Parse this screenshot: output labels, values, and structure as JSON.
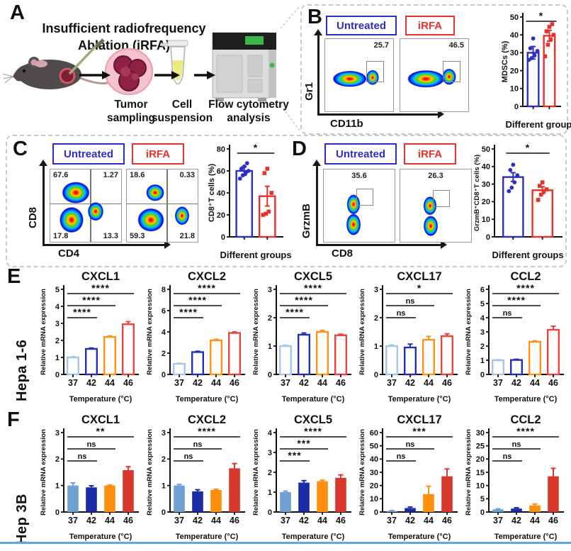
{
  "panelA": {
    "label": "A",
    "title_line1": "Insufficient radiofrequency",
    "title_line2": "Ablation (iRFA)",
    "steps": [
      {
        "line1": "Tumor",
        "line2": "sampling"
      },
      {
        "line1": "Cell",
        "line2": "suspension"
      },
      {
        "line1": "Flow cytometry",
        "line2": "analysis"
      }
    ]
  },
  "groups": {
    "untreated": "Untreated",
    "irfa": "iRFA"
  },
  "panelB": {
    "label": "B",
    "gate_untreated": "25.7",
    "gate_irfa": "46.5",
    "yaxis": "Gr1",
    "xaxis": "CD11b"
  },
  "panelC": {
    "label": "C",
    "yaxis": "CD8",
    "xaxis": "CD4",
    "untreated": {
      "tl": "67.6",
      "tr": "1.27",
      "bl": "17.8",
      "br": "13.3"
    },
    "irfa": {
      "tl": "18.6",
      "tr": "0.33",
      "bl": "59.3",
      "br": "21.8"
    }
  },
  "panelD": {
    "label": "D",
    "gate_untreated": "35.6",
    "gate_irfa": "26.3",
    "yaxis": "GrzmB",
    "xaxis": "CD8"
  },
  "panelE": {
    "label": "E",
    "row_label": "Hepa 1-6"
  },
  "panelF": {
    "label": "F",
    "row_label": "Hep 3B"
  },
  "colors": {
    "untreated_blue": "#2B2FC4",
    "irfa_red": "#E8312A",
    "temp37_hollow": "#A5C6E8",
    "temp42_hollow": "#2230B8",
    "temp44_hollow": "#FF9318",
    "temp46_hollow": "#E8453C",
    "temp37_solid": "#6FA0D2",
    "temp42_solid": "#1B2AA6",
    "temp44_solid": "#FF8E0D",
    "temp46_solid": "#DA372C",
    "bottom_rule": "#59ACDF"
  },
  "chart_data": [
    {
      "id": "B-mdsc",
      "type": "bar",
      "title": "",
      "ylabel": "MDSCs (%)",
      "xlabel": "Different groups",
      "ymax": 50,
      "ystep": 10,
      "categories": [
        "Untreated",
        "iRFA"
      ],
      "show_xticklabels": false,
      "style": "hollow",
      "colors": [
        "#2B2FC4",
        "#E8312A"
      ],
      "values": [
        30,
        39.5
      ],
      "errors": [
        3.5,
        3
      ],
      "points": [
        [
          26,
          27,
          28.5,
          31,
          32.5,
          38
        ],
        [
          28,
          34.5,
          37.5,
          40,
          42,
          44.5,
          46
        ]
      ],
      "point_shapes": [
        "circle",
        "square"
      ],
      "sigs": [
        {
          "a": 0,
          "b": 1,
          "label": "*"
        }
      ]
    },
    {
      "id": "C-cd8t",
      "type": "bar",
      "title": "",
      "ylabel": "CD8⁺T cells (%)",
      "xlabel": "Different groups",
      "ymax": 80,
      "ystep": 20,
      "categories": [
        "Untreated",
        "iRFA"
      ],
      "show_xticklabels": false,
      "style": "hollow",
      "colors": [
        "#2B2FC4",
        "#E8312A"
      ],
      "values": [
        60,
        37
      ],
      "errors": [
        4,
        9
      ],
      "points": [
        [
          53,
          56,
          58,
          60,
          62,
          64,
          67
        ],
        [
          20,
          21,
          23,
          40,
          58,
          62
        ]
      ],
      "point_shapes": [
        "circle",
        "square"
      ],
      "sigs": [
        {
          "a": 0,
          "b": 1,
          "label": "*"
        }
      ]
    },
    {
      "id": "D-grzmb",
      "type": "bar",
      "title": "",
      "ylabel": "GrzmB⁺CD8⁺T cells (%)",
      "xlabel": "Different groups",
      "ymax": 50,
      "ystep": 10,
      "categories": [
        "Untreated",
        "iRFA"
      ],
      "show_xticklabels": false,
      "style": "hollow",
      "colors": [
        "#2B2FC4",
        "#E8312A"
      ],
      "values": [
        34,
        26.5
      ],
      "errors": [
        2.5,
        2
      ],
      "points": [
        [
          26,
          28,
          31,
          35,
          38,
          41
        ],
        [
          21,
          24,
          26,
          27,
          29,
          31
        ]
      ],
      "point_shapes": [
        "circle",
        "square"
      ],
      "sigs": [
        {
          "a": 0,
          "b": 1,
          "label": "*"
        }
      ]
    },
    {
      "id": "E-CXCL1",
      "type": "bar",
      "title": "CXCL1",
      "ylabel": "Relative mRNA expression",
      "xlabel": "Temperature (°C)",
      "ymax": 5,
      "ystep": 1,
      "categories": [
        "37",
        "42",
        "44",
        "46"
      ],
      "show_xticklabels": true,
      "style": "hollow",
      "colors": [
        "#A5C6E8",
        "#2230B8",
        "#FF9318",
        "#E8453C"
      ],
      "values": [
        1.0,
        1.5,
        2.2,
        2.95
      ],
      "errors": [
        0.04,
        0.05,
        0.06,
        0.15
      ],
      "sigs": [
        {
          "a": 0,
          "b": 1,
          "label": "****"
        },
        {
          "a": 0,
          "b": 2,
          "label": "****"
        },
        {
          "a": 0,
          "b": 3,
          "label": "****"
        }
      ]
    },
    {
      "id": "E-CXCL2",
      "type": "bar",
      "title": "CXCL2",
      "ylabel": "Relative mRNA expression",
      "xlabel": "Temperature (°C)",
      "ymax": 8,
      "ystep": 2,
      "categories": [
        "37",
        "42",
        "44",
        "46"
      ],
      "show_xticklabels": true,
      "style": "hollow",
      "colors": [
        "#A5C6E8",
        "#2230B8",
        "#FF9318",
        "#E8453C"
      ],
      "values": [
        1.0,
        2.1,
        3.2,
        3.9
      ],
      "errors": [
        0.05,
        0.08,
        0.1,
        0.1
      ],
      "sigs": [
        {
          "a": 0,
          "b": 1,
          "label": "****"
        },
        {
          "a": 0,
          "b": 2,
          "label": "****"
        },
        {
          "a": 0,
          "b": 3,
          "label": "****"
        }
      ]
    },
    {
      "id": "E-CXCL5",
      "type": "bar",
      "title": "CXCL5",
      "ylabel": "Relative mRNA expression",
      "xlabel": "Temperature (°C)",
      "ymax": 3,
      "ystep": 1,
      "categories": [
        "37",
        "42",
        "44",
        "46"
      ],
      "show_xticklabels": true,
      "style": "hollow",
      "colors": [
        "#A5C6E8",
        "#2230B8",
        "#FF9318",
        "#E8453C"
      ],
      "values": [
        1.0,
        1.4,
        1.5,
        1.38
      ],
      "errors": [
        0.03,
        0.06,
        0.05,
        0.04
      ],
      "sigs": [
        {
          "a": 0,
          "b": 1,
          "label": "****"
        },
        {
          "a": 0,
          "b": 2,
          "label": "****"
        },
        {
          "a": 0,
          "b": 3,
          "label": "****"
        }
      ]
    },
    {
      "id": "E-CXCL17",
      "type": "bar",
      "title": "CXCL17",
      "ylabel": "Relative mRNA expression",
      "xlabel": "Temperature (°C)",
      "ymax": 3,
      "ystep": 1,
      "categories": [
        "37",
        "42",
        "44",
        "46"
      ],
      "show_xticklabels": true,
      "style": "hollow",
      "colors": [
        "#A5C6E8",
        "#2230B8",
        "#FF9318",
        "#E8453C"
      ],
      "values": [
        1.0,
        0.95,
        1.22,
        1.35
      ],
      "errors": [
        0.04,
        0.12,
        0.12,
        0.08
      ],
      "sigs": [
        {
          "a": 0,
          "b": 1,
          "label": "ns"
        },
        {
          "a": 0,
          "b": 2,
          "label": "ns"
        },
        {
          "a": 0,
          "b": 3,
          "label": "*"
        }
      ]
    },
    {
      "id": "E-CCL2",
      "type": "bar",
      "title": "CCL2",
      "ylabel": "Relative mRNA expression",
      "xlabel": "Temperature (°C)",
      "ymax": 6,
      "ystep": 1,
      "categories": [
        "37",
        "42",
        "44",
        "46"
      ],
      "show_xticklabels": true,
      "style": "hollow",
      "colors": [
        "#A5C6E8",
        "#2230B8",
        "#FF9318",
        "#E8453C"
      ],
      "values": [
        1.0,
        1.02,
        2.3,
        3.15
      ],
      "errors": [
        0.04,
        0.05,
        0.07,
        0.25
      ],
      "sigs": [
        {
          "a": 0,
          "b": 1,
          "label": "ns"
        },
        {
          "a": 0,
          "b": 2,
          "label": "****"
        },
        {
          "a": 0,
          "b": 3,
          "label": "****"
        }
      ]
    },
    {
      "id": "F-CXCL1",
      "type": "bar",
      "title": "CXCL1",
      "ylabel": "Relative mRNA expression",
      "xlabel": "Temperature (°C)",
      "ymax": 3,
      "ystep": 1,
      "categories": [
        "37",
        "42",
        "44",
        "46"
      ],
      "show_xticklabels": true,
      "style": "solid",
      "colors": [
        "#6FA0D2",
        "#1B2AA6",
        "#FF8E0D",
        "#DA372C"
      ],
      "values": [
        1.0,
        0.93,
        1.0,
        1.58
      ],
      "errors": [
        0.1,
        0.06,
        0.02,
        0.13
      ],
      "sigs": [
        {
          "a": 0,
          "b": 1,
          "label": "ns"
        },
        {
          "a": 0,
          "b": 2,
          "label": "ns"
        },
        {
          "a": 0,
          "b": 3,
          "label": "**"
        }
      ]
    },
    {
      "id": "F-CXCL2",
      "type": "bar",
      "title": "CXCL2",
      "ylabel": "Relative mRNA expression",
      "xlabel": "Temperature (°C)",
      "ymax": 3,
      "ystep": 1,
      "categories": [
        "37",
        "42",
        "44",
        "46"
      ],
      "show_xticklabels": true,
      "style": "solid",
      "colors": [
        "#6FA0D2",
        "#1B2AA6",
        "#FF8E0D",
        "#DA372C"
      ],
      "values": [
        1.0,
        0.78,
        0.83,
        1.65
      ],
      "errors": [
        0.04,
        0.06,
        0.03,
        0.18
      ],
      "sigs": [
        {
          "a": 0,
          "b": 1,
          "label": "ns"
        },
        {
          "a": 0,
          "b": 2,
          "label": "ns"
        },
        {
          "a": 0,
          "b": 3,
          "label": "****"
        }
      ]
    },
    {
      "id": "F-CXCL5",
      "type": "bar",
      "title": "CXCL5",
      "ylabel": "Relative mRNA expression",
      "xlabel": "Temperature (°C)",
      "ymax": 4,
      "ystep": 1,
      "categories": [
        "37",
        "42",
        "44",
        "46"
      ],
      "show_xticklabels": true,
      "style": "solid",
      "colors": [
        "#6FA0D2",
        "#1B2AA6",
        "#FF8E0D",
        "#DA372C"
      ],
      "values": [
        1.0,
        1.48,
        1.55,
        1.72
      ],
      "errors": [
        0.05,
        0.1,
        0.05,
        0.15
      ],
      "sigs": [
        {
          "a": 0,
          "b": 1,
          "label": "***"
        },
        {
          "a": 0,
          "b": 2,
          "label": "***"
        },
        {
          "a": 0,
          "b": 3,
          "label": "****"
        }
      ]
    },
    {
      "id": "F-CXCL17",
      "type": "bar",
      "title": "CXCL17",
      "ylabel": "Relative mRNA expression",
      "xlabel": "Temperature (°C)",
      "ymax": 60,
      "ystep": 10,
      "categories": [
        "37",
        "42",
        "44",
        "46"
      ],
      "show_xticklabels": true,
      "style": "solid",
      "colors": [
        "#6FA0D2",
        "#1B2AA6",
        "#FF8E0D",
        "#DA372C"
      ],
      "values": [
        0.8,
        3,
        13.5,
        27
      ],
      "errors": [
        0.3,
        0.8,
        6,
        5.5
      ],
      "sigs": [
        {
          "a": 0,
          "b": 1,
          "label": "ns"
        },
        {
          "a": 0,
          "b": 2,
          "label": "ns"
        },
        {
          "a": 0,
          "b": 3,
          "label": "***"
        }
      ]
    },
    {
      "id": "F-CCL2",
      "type": "bar",
      "title": "CCL2",
      "ylabel": "Relative mRNA expression",
      "xlabel": "Temperature (°C)",
      "ymax": 30,
      "ystep": 5,
      "categories": [
        "37",
        "42",
        "44",
        "46"
      ],
      "show_xticklabels": true,
      "style": "solid",
      "colors": [
        "#6FA0D2",
        "#1B2AA6",
        "#FF8E0D",
        "#DA372C"
      ],
      "values": [
        1.0,
        1.3,
        2.5,
        13.5
      ],
      "errors": [
        0.2,
        0.3,
        0.5,
        3
      ],
      "sigs": [
        {
          "a": 0,
          "b": 1,
          "label": "ns"
        },
        {
          "a": 0,
          "b": 2,
          "label": "ns"
        },
        {
          "a": 0,
          "b": 3,
          "label": "****"
        }
      ]
    }
  ]
}
